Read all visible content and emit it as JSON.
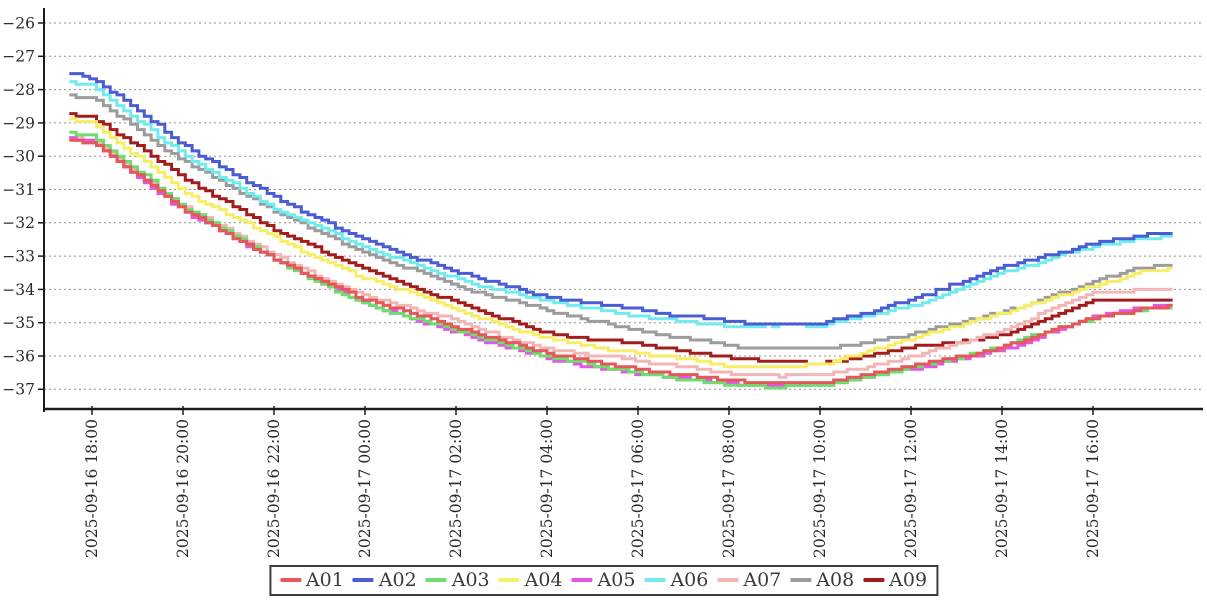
{
  "chart_data": {
    "type": "line",
    "title": "",
    "xlabel": "",
    "ylabel": "",
    "grid": "dotted-horizontal",
    "legend_position": "bottom-center",
    "y_ticks": [
      -26,
      -27,
      -28,
      -29,
      -30,
      -31,
      -32,
      -33,
      -34,
      -35,
      -36,
      -37
    ],
    "ylim": [
      -37.6,
      -25.55
    ],
    "x_ticks": [
      {
        "label": "2025-09-16 18:00",
        "hour": 0.5
      },
      {
        "label": "2025-09-16 20:00",
        "hour": 2.5
      },
      {
        "label": "2025-09-16 22:00",
        "hour": 4.5
      },
      {
        "label": "2025-09-17 00:00",
        "hour": 6.5
      },
      {
        "label": "2025-09-17 02:00",
        "hour": 8.5
      },
      {
        "label": "2025-09-17 04:00",
        "hour": 10.5
      },
      {
        "label": "2025-09-17 06:00",
        "hour": 12.5
      },
      {
        "label": "2025-09-17 08:00",
        "hour": 14.5
      },
      {
        "label": "2025-09-17 10:00",
        "hour": 16.5
      },
      {
        "label": "2025-09-17 12:00",
        "hour": 18.5
      },
      {
        "label": "2025-09-17 14:00",
        "hour": 20.5
      },
      {
        "label": "2025-09-17 16:00",
        "hour": 22.5
      }
    ],
    "x_start_hour": 0,
    "x_end_hour": 24.25,
    "anchor_hours": [
      0,
      0.5,
      2.5,
      4.5,
      6.5,
      8.5,
      10.5,
      12.5,
      14.5,
      15.5,
      16.5,
      17.5,
      18.5,
      19.5,
      20.5,
      21.5,
      22.5,
      23.5,
      24.25
    ],
    "series": [
      {
        "name": "A01",
        "color": "#e4575a",
        "values": [
          -29.5,
          -29.6,
          -31.55,
          -33.05,
          -34.35,
          -35.2,
          -36.0,
          -36.45,
          -36.8,
          -36.85,
          -36.85,
          -36.6,
          -36.3,
          -36.0,
          -35.65,
          -35.2,
          -34.8,
          -34.55,
          -34.45
        ]
      },
      {
        "name": "A02",
        "color": "#4a5cd4",
        "values": [
          -27.5,
          -27.6,
          -29.7,
          -31.3,
          -32.6,
          -33.55,
          -34.3,
          -34.65,
          -34.95,
          -35.08,
          -35.05,
          -34.75,
          -34.35,
          -33.85,
          -33.4,
          -33.0,
          -32.65,
          -32.4,
          -32.3
        ]
      },
      {
        "name": "A03",
        "color": "#6edc6e",
        "values": [
          -29.3,
          -29.4,
          -31.6,
          -33.1,
          -34.45,
          -35.3,
          -36.1,
          -36.55,
          -36.95,
          -37.0,
          -36.95,
          -36.7,
          -36.4,
          -36.1,
          -35.75,
          -35.3,
          -34.85,
          -34.6,
          -34.5
        ]
      },
      {
        "name": "A04",
        "color": "#f6ee66",
        "values": [
          -28.9,
          -29.0,
          -31.05,
          -32.5,
          -33.7,
          -34.6,
          -35.5,
          -35.9,
          -36.25,
          -36.3,
          -36.2,
          -35.8,
          -35.4,
          -35.05,
          -34.7,
          -34.3,
          -33.9,
          -33.5,
          -33.4
        ]
      },
      {
        "name": "A05",
        "color": "#e455e4",
        "values": [
          -29.45,
          -29.55,
          -31.7,
          -33.15,
          -34.5,
          -35.35,
          -36.15,
          -36.6,
          -36.9,
          -36.95,
          -36.95,
          -36.7,
          -36.45,
          -36.1,
          -35.8,
          -35.3,
          -34.8,
          -34.5,
          -34.45
        ]
      },
      {
        "name": "A06",
        "color": "#72ebef",
        "values": [
          -27.8,
          -27.9,
          -30.0,
          -31.5,
          -32.7,
          -33.65,
          -34.4,
          -34.75,
          -35.1,
          -35.15,
          -35.12,
          -34.85,
          -34.5,
          -34.0,
          -33.5,
          -33.1,
          -32.75,
          -32.5,
          -32.45
        ]
      },
      {
        "name": "A07",
        "color": "#f2b6b6",
        "values": [
          -29.4,
          -29.5,
          -31.5,
          -33.0,
          -34.2,
          -35.0,
          -35.8,
          -36.2,
          -36.55,
          -36.6,
          -36.6,
          -36.3,
          -36.0,
          -35.6,
          -35.15,
          -34.6,
          -34.05,
          -33.95,
          -33.9
        ]
      },
      {
        "name": "A08",
        "color": "#9c9c9c",
        "values": [
          -28.2,
          -28.3,
          -30.2,
          -31.7,
          -33.0,
          -33.9,
          -34.7,
          -35.3,
          -35.75,
          -35.8,
          -35.78,
          -35.55,
          -35.3,
          -34.95,
          -34.6,
          -34.2,
          -33.8,
          -33.4,
          -33.3
        ]
      },
      {
        "name": "A09",
        "color": "#a31c1c",
        "values": [
          -28.7,
          -28.8,
          -30.65,
          -32.2,
          -33.4,
          -34.35,
          -35.3,
          -35.7,
          -36.1,
          -36.2,
          -36.25,
          -36.05,
          -35.8,
          -35.6,
          -35.35,
          -34.85,
          -34.35,
          -34.3,
          -34.3
        ]
      }
    ],
    "draw_order": [
      "A09",
      "A08",
      "A07",
      "A06",
      "A05",
      "A04",
      "A03",
      "A02",
      "A01"
    ],
    "legend_order": [
      "A01",
      "A02",
      "A03",
      "A04",
      "A05",
      "A06",
      "A07",
      "A08",
      "A09"
    ]
  },
  "style_colors": {
    "axis": "#1c1c1c",
    "grid": "#8f8f8f",
    "tick_label": "#2b2b2b",
    "background": "#ffffff"
  }
}
